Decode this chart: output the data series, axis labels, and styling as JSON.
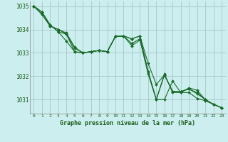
{
  "background_color": "#cceeee",
  "grid_color": "#aacccc",
  "line_color": "#1a6b2a",
  "marker_color": "#1a6b2a",
  "xlabel": "Graphe pression niveau de la mer (hPa)",
  "xlabel_color": "#1a5c1a",
  "ylim": [
    1030.4,
    1035.2
  ],
  "xlim": [
    -0.5,
    23.5
  ],
  "yticks": [
    1031,
    1032,
    1033,
    1034,
    1035
  ],
  "xticks": [
    0,
    1,
    2,
    3,
    4,
    5,
    6,
    7,
    8,
    9,
    10,
    11,
    12,
    13,
    14,
    15,
    16,
    17,
    18,
    19,
    20,
    21,
    22,
    23
  ],
  "series": [
    [
      1035.0,
      1034.75,
      1034.2,
      1033.9,
      1033.8,
      1033.05,
      1033.0,
      1033.05,
      1033.1,
      1033.05,
      1033.7,
      1033.72,
      1033.6,
      1033.72,
      1032.55,
      1031.65,
      1032.05,
      1031.35,
      1031.35,
      1031.45,
      1031.25,
      1031.0,
      1030.8,
      1030.65
    ],
    [
      1035.0,
      1034.65,
      1034.15,
      1034.0,
      1033.85,
      1033.25,
      1033.0,
      1033.05,
      1033.1,
      1033.05,
      1033.7,
      1033.72,
      1033.4,
      1033.6,
      1032.2,
      1031.0,
      1031.0,
      1031.8,
      1031.3,
      1031.3,
      1031.05,
      1030.95,
      1030.8,
      1030.65
    ],
    [
      1035.0,
      1034.65,
      1034.15,
      1034.0,
      1033.8,
      1033.2,
      1033.0,
      1033.05,
      1033.1,
      1033.05,
      1033.7,
      1033.72,
      1033.3,
      1033.55,
      1032.1,
      1031.0,
      1032.1,
      1031.3,
      1031.3,
      1031.5,
      1031.4,
      1031.0,
      1030.8,
      1030.65
    ],
    [
      1035.0,
      1034.75,
      1034.2,
      1033.9,
      1033.5,
      1033.05,
      1033.0,
      1033.05,
      1033.1,
      1033.05,
      1033.7,
      1033.72,
      1033.6,
      1033.72,
      1032.2,
      1031.0,
      1032.05,
      1031.35,
      1031.35,
      1031.45,
      1031.3,
      1031.0,
      1030.8,
      1030.65
    ]
  ]
}
